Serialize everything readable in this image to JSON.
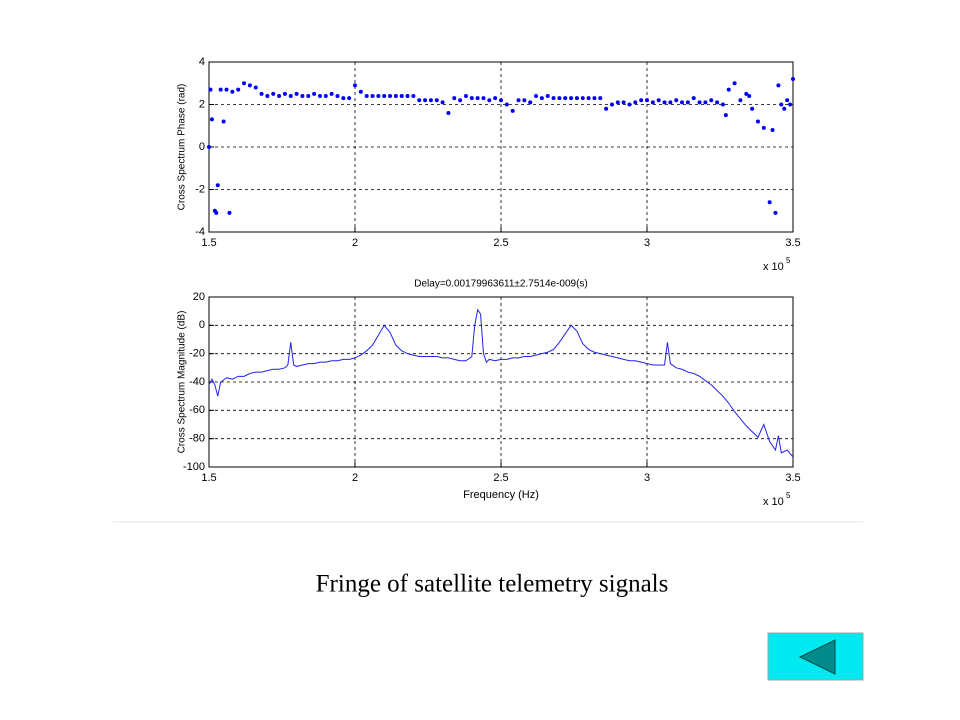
{
  "chart_data": [
    {
      "type": "scatter",
      "ylabel": "Cross Spectrum Phase (rad)",
      "color": "#0000ff",
      "grid": true,
      "x_multiplier": {
        "base": "x 10",
        "exponent": "5"
      },
      "xlim": [
        1.5,
        3.5
      ],
      "xticks": [
        1.5,
        2,
        2.5,
        3,
        3.5
      ],
      "ylim": [
        -4,
        4
      ],
      "yticks": [
        -4,
        -2,
        0,
        2,
        4
      ],
      "x": [
        1.5,
        1.505,
        1.51,
        1.52,
        1.525,
        1.53,
        1.54,
        1.55,
        1.56,
        1.57,
        1.58,
        1.6,
        1.62,
        1.64,
        1.66,
        1.68,
        1.7,
        1.72,
        1.74,
        1.76,
        1.78,
        1.8,
        1.82,
        1.84,
        1.86,
        1.88,
        1.9,
        1.92,
        1.94,
        1.96,
        1.98,
        2.0,
        2.02,
        2.04,
        2.06,
        2.08,
        2.1,
        2.12,
        2.14,
        2.16,
        2.18,
        2.2,
        2.22,
        2.24,
        2.26,
        2.28,
        2.3,
        2.32,
        2.34,
        2.36,
        2.38,
        2.4,
        2.42,
        2.44,
        2.46,
        2.48,
        2.5,
        2.52,
        2.54,
        2.56,
        2.58,
        2.6,
        2.62,
        2.64,
        2.66,
        2.68,
        2.7,
        2.72,
        2.74,
        2.76,
        2.78,
        2.8,
        2.82,
        2.84,
        2.86,
        2.88,
        2.9,
        2.92,
        2.94,
        2.96,
        2.98,
        3.0,
        3.02,
        3.04,
        3.06,
        3.08,
        3.1,
        3.12,
        3.14,
        3.16,
        3.18,
        3.2,
        3.22,
        3.24,
        3.26,
        3.27,
        3.28,
        3.3,
        3.32,
        3.34,
        3.35,
        3.36,
        3.38,
        3.4,
        3.42,
        3.43,
        3.44,
        3.45,
        3.46,
        3.47,
        3.48,
        3.49,
        3.5
      ],
      "values": [
        0,
        2.7,
        1.3,
        -3.0,
        -3.1,
        -1.8,
        2.7,
        1.2,
        2.7,
        -3.1,
        2.6,
        2.7,
        3.0,
        2.9,
        2.8,
        2.5,
        2.4,
        2.5,
        2.4,
        2.5,
        2.4,
        2.5,
        2.4,
        2.4,
        2.5,
        2.4,
        2.4,
        2.5,
        2.4,
        2.3,
        2.3,
        2.9,
        2.6,
        2.4,
        2.4,
        2.4,
        2.4,
        2.4,
        2.4,
        2.4,
        2.4,
        2.4,
        2.2,
        2.2,
        2.2,
        2.2,
        2.1,
        1.6,
        2.3,
        2.2,
        2.4,
        2.3,
        2.3,
        2.3,
        2.2,
        2.3,
        2.2,
        2.0,
        1.7,
        2.2,
        2.2,
        2.1,
        2.4,
        2.3,
        2.4,
        2.3,
        2.3,
        2.3,
        2.3,
        2.3,
        2.3,
        2.3,
        2.3,
        2.3,
        1.8,
        2.0,
        2.1,
        2.1,
        2.0,
        2.1,
        2.2,
        2.2,
        2.1,
        2.2,
        2.1,
        2.1,
        2.2,
        2.1,
        2.1,
        2.3,
        2.1,
        2.1,
        2.2,
        2.1,
        2.0,
        1.5,
        2.7,
        3.0,
        2.2,
        2.5,
        2.4,
        1.8,
        1.2,
        0.9,
        -2.6,
        0.8,
        -3.1,
        2.9,
        2.0,
        1.8,
        2.2,
        2.0,
        3.2
      ]
    },
    {
      "type": "line",
      "title": "Delay=0.00179963611±2.7514e-009(s)",
      "xlabel": "Frequency (Hz)",
      "ylabel": "Cross Spectrum Magnitude (dB)",
      "color": "#2222ee",
      "grid": true,
      "x_multiplier": {
        "base": "x 10",
        "exponent": "5"
      },
      "xlim": [
        1.5,
        3.5
      ],
      "xticks": [
        1.5,
        2,
        2.5,
        3,
        3.5
      ],
      "ylim": [
        -100,
        20
      ],
      "yticks": [
        -100,
        -80,
        -60,
        -40,
        -20,
        0,
        20
      ],
      "x": [
        1.5,
        1.51,
        1.52,
        1.53,
        1.54,
        1.56,
        1.58,
        1.6,
        1.62,
        1.64,
        1.66,
        1.68,
        1.7,
        1.72,
        1.74,
        1.76,
        1.77,
        1.78,
        1.79,
        1.8,
        1.82,
        1.84,
        1.86,
        1.88,
        1.9,
        1.92,
        1.94,
        1.96,
        1.98,
        2.0,
        2.02,
        2.04,
        2.06,
        2.08,
        2.1,
        2.12,
        2.14,
        2.16,
        2.18,
        2.2,
        2.22,
        2.24,
        2.26,
        2.28,
        2.3,
        2.32,
        2.34,
        2.36,
        2.38,
        2.4,
        2.41,
        2.42,
        2.43,
        2.44,
        2.45,
        2.46,
        2.48,
        2.5,
        2.52,
        2.54,
        2.56,
        2.58,
        2.6,
        2.62,
        2.64,
        2.66,
        2.68,
        2.7,
        2.72,
        2.74,
        2.76,
        2.78,
        2.8,
        2.82,
        2.84,
        2.86,
        2.88,
        2.9,
        2.92,
        2.94,
        2.96,
        2.98,
        3.0,
        3.02,
        3.04,
        3.06,
        3.07,
        3.08,
        3.1,
        3.12,
        3.14,
        3.16,
        3.18,
        3.2,
        3.22,
        3.24,
        3.26,
        3.28,
        3.3,
        3.32,
        3.34,
        3.36,
        3.38,
        3.4,
        3.42,
        3.44,
        3.45,
        3.46,
        3.48,
        3.5
      ],
      "values": [
        -42,
        -38,
        -42,
        -50,
        -40,
        -37,
        -38,
        -36,
        -36,
        -34,
        -33,
        -33,
        -32,
        -31,
        -31,
        -30,
        -28,
        -12,
        -28,
        -29,
        -28,
        -27,
        -27,
        -26,
        -26,
        -25,
        -25,
        -24,
        -24,
        -23,
        -21,
        -18,
        -14,
        -7,
        0,
        -5,
        -14,
        -18,
        -20,
        -21,
        -22,
        -22,
        -22,
        -22,
        -23,
        -23,
        -24,
        -25,
        -25,
        -22,
        0,
        11,
        8,
        -20,
        -26,
        -24,
        -25,
        -24,
        -24,
        -23,
        -23,
        -22,
        -22,
        -21,
        -20,
        -19,
        -17,
        -12,
        -6,
        0,
        -4,
        -13,
        -17,
        -19,
        -20,
        -21,
        -22,
        -23,
        -24,
        -25,
        -25,
        -26,
        -27,
        -28,
        -28,
        -28,
        -12,
        -27,
        -30,
        -31,
        -33,
        -34,
        -36,
        -39,
        -42,
        -46,
        -50,
        -55,
        -61,
        -66,
        -71,
        -75,
        -79,
        -70,
        -82,
        -88,
        -78,
        -90,
        -88,
        -93
      ]
    }
  ],
  "caption": "Fringe of satellite telemetry signals"
}
